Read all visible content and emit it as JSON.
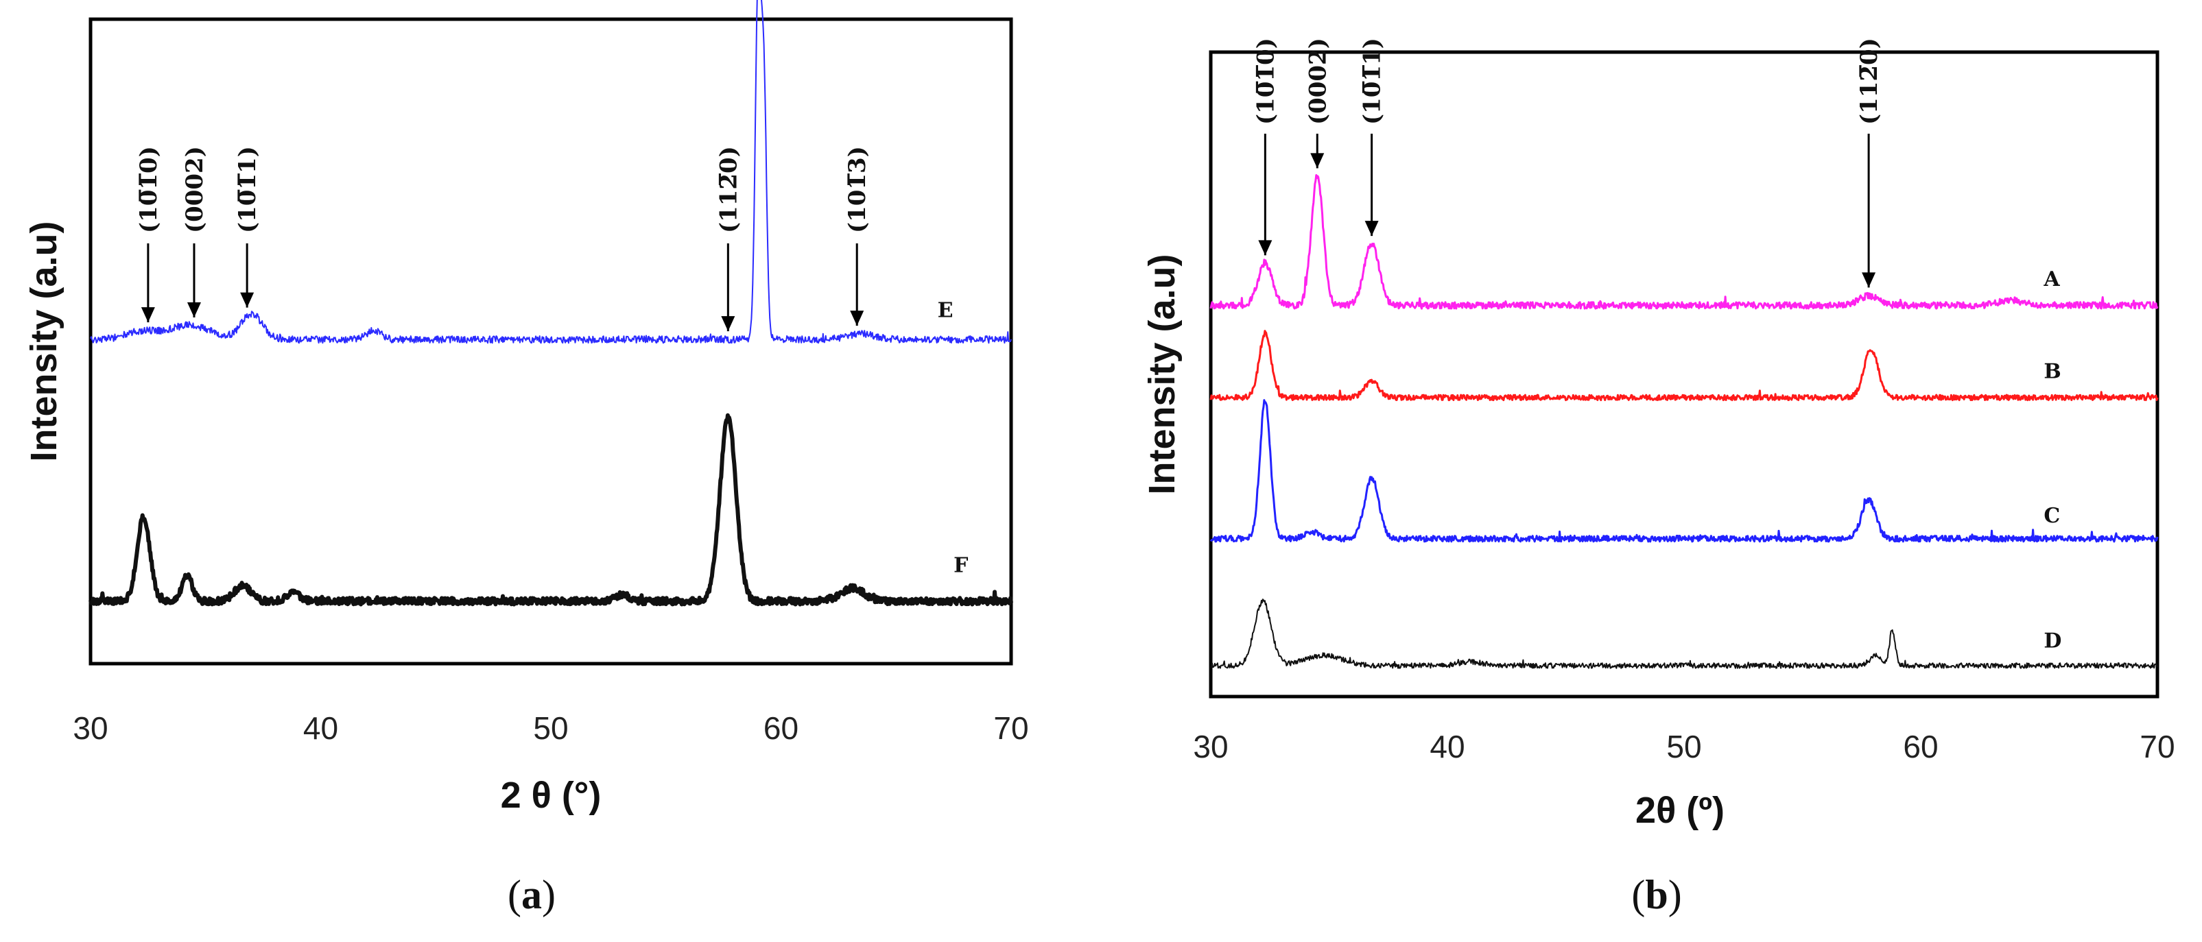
{
  "chart_data": [
    {
      "type": "line",
      "panel_label": "a",
      "caption": {
        "open": "(",
        "label": "a",
        "close": ")"
      },
      "xlabel": "2 θ (°)",
      "ylabel": "Intensity (a.u)",
      "xlim": [
        30,
        70
      ],
      "xticks": [
        "30",
        "40",
        "50",
        "60",
        "70"
      ],
      "ylim": [
        0,
        100
      ],
      "annotations": [
        {
          "text": "(10̅1̅0)",
          "x": 32.5
        },
        {
          "text": "(0002)",
          "x": 34.5
        },
        {
          "text": "(10̅1̅1)",
          "x": 36.8
        },
        {
          "text": "(112̅0)",
          "x": 57.7
        },
        {
          "text": "(101̅3)",
          "x": 63.3
        }
      ],
      "series": [
        {
          "name": "E",
          "color": "#2b2bff",
          "stroke": 2,
          "baseline": 50.3,
          "label_x": 66.8,
          "label_y": 53.8,
          "peaks": [
            [
              32.2,
              1.2,
              0.7
            ],
            [
              34.3,
              2.2,
              0.9
            ],
            [
              37.0,
              4.0,
              0.45
            ],
            [
              42.3,
              1.5,
              0.3
            ],
            [
              59.0,
              53.0,
              0.12
            ],
            [
              59.25,
              40.0,
              0.12
            ],
            [
              63.5,
              0.9,
              0.6
            ]
          ],
          "noise": 0.55
        },
        {
          "name": "F",
          "color": "#111111",
          "stroke": 6,
          "baseline": 9.7,
          "label_x": 67.5,
          "label_y": 14.2,
          "peaks": [
            [
              32.3,
              13.0,
              0.28
            ],
            [
              34.2,
              4.0,
              0.22
            ],
            [
              36.6,
              2.4,
              0.35
            ],
            [
              38.8,
              1.2,
              0.3
            ],
            [
              53.1,
              1.0,
              0.3
            ],
            [
              57.7,
              28.5,
              0.35
            ],
            [
              63.1,
              2.0,
              0.5
            ]
          ],
          "noise": 0.5
        }
      ]
    },
    {
      "type": "line",
      "panel_label": "b",
      "caption": {
        "open": "(",
        "label": "b",
        "close": ")"
      },
      "xlabel": "2θ (º)",
      "ylabel": "Intensity (a.u)",
      "xlim": [
        30,
        70
      ],
      "xticks": [
        "30",
        "40",
        "50",
        "60",
        "70"
      ],
      "ylim": [
        0,
        100
      ],
      "annotations": [
        {
          "text": "(10̅1̅0)",
          "x": 32.3
        },
        {
          "text": "(0002)",
          "x": 34.5
        },
        {
          "text": "(10̅1̅1)",
          "x": 36.8
        },
        {
          "text": "(112̅0)",
          "x": 57.8
        }
      ],
      "series": [
        {
          "name": "A",
          "color": "#ff22ee",
          "stroke": 3,
          "baseline": 60.7,
          "label_x": 65.2,
          "label_y": 63.7,
          "peaks": [
            [
              32.3,
              6.5,
              0.3
            ],
            [
              34.5,
              20.0,
              0.25
            ],
            [
              36.8,
              9.5,
              0.32
            ],
            [
              57.8,
              1.5,
              0.4
            ],
            [
              63.8,
              0.8,
              0.5
            ]
          ],
          "noise": 0.5
        },
        {
          "name": "B",
          "color": "#ff1a1a",
          "stroke": 3,
          "baseline": 46.4,
          "label_x": 65.2,
          "label_y": 49.4,
          "peaks": [
            [
              32.3,
              10.0,
              0.25
            ],
            [
              36.8,
              2.5,
              0.3
            ],
            [
              57.9,
              7.5,
              0.3
            ]
          ],
          "noise": 0.4
        },
        {
          "name": "C",
          "color": "#2222ff",
          "stroke": 3,
          "baseline": 24.5,
          "label_x": 65.2,
          "label_y": 27.0,
          "peaks": [
            [
              32.3,
              21.5,
              0.22
            ],
            [
              34.3,
              1.0,
              0.3
            ],
            [
              36.8,
              9.5,
              0.3
            ],
            [
              57.8,
              6.0,
              0.3
            ]
          ],
          "noise": 0.45
        },
        {
          "name": "D",
          "color": "#111111",
          "stroke": 2,
          "baseline": 4.8,
          "label_x": 65.2,
          "label_y": 7.6,
          "peaks": [
            [
              32.2,
              10.0,
              0.35
            ],
            [
              34.8,
              1.6,
              0.8
            ],
            [
              41.0,
              0.6,
              0.5
            ],
            [
              58.1,
              1.6,
              0.25
            ],
            [
              58.8,
              5.5,
              0.12
            ]
          ],
          "noise": 0.4
        }
      ]
    }
  ]
}
